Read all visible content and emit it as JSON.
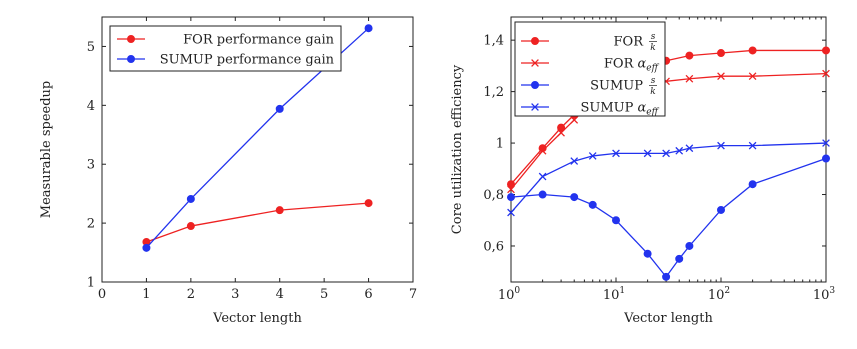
{
  "chart_data": [
    {
      "type": "line",
      "xlabel": "Vector length",
      "ylabel": "Measurable speedup",
      "xlim": [
        0,
        7
      ],
      "ylim": [
        1,
        5.5
      ],
      "xticks": [
        "0",
        "1",
        "2",
        "3",
        "4",
        "5",
        "6",
        "7"
      ],
      "yticks": [
        "1",
        "2",
        "3",
        "4",
        "5"
      ],
      "legend_placement": "top-left",
      "series": [
        {
          "name": "FOR performance gain",
          "color": "#ee2222",
          "marker": "circle",
          "x": [
            1,
            2,
            4,
            6
          ],
          "y": [
            1.68,
            1.95,
            2.22,
            2.34
          ]
        },
        {
          "name": "SUMUP performance gain",
          "color": "#2233ee",
          "marker": "circle",
          "x": [
            1,
            2,
            4,
            6
          ],
          "y": [
            1.58,
            2.41,
            3.94,
            5.31
          ]
        }
      ]
    },
    {
      "type": "line",
      "xlabel": "Vector length",
      "ylabel": "Core utilization efficiency",
      "xscale": "log",
      "xlim": [
        1,
        1000
      ],
      "ylim": [
        0.46,
        1.49
      ],
      "xticks": [
        {
          "base": "10",
          "exp": "0"
        },
        {
          "base": "10",
          "exp": "1"
        },
        {
          "base": "10",
          "exp": "2"
        },
        {
          "base": "10",
          "exp": "3"
        }
      ],
      "yticks": [
        "0,6",
        "0,8",
        "1",
        "1,2",
        "1,4"
      ],
      "legend_placement": "top-left",
      "series": [
        {
          "name": "FOR s/k",
          "legend": {
            "label": "FOR",
            "math": "frac",
            "num": "s",
            "den": "k"
          },
          "color": "#ee2222",
          "marker": "circle",
          "x": [
            1,
            2,
            3,
            4,
            5,
            6,
            8,
            10,
            20,
            30,
            50,
            100,
            200,
            1000
          ],
          "y": [
            0.84,
            0.98,
            1.06,
            1.11,
            1.15,
            1.18,
            1.22,
            1.26,
            1.3,
            1.32,
            1.34,
            1.35,
            1.36,
            1.36
          ]
        },
        {
          "name": "FOR α_eff",
          "legend": {
            "label": "FOR",
            "math": "sub",
            "sym": "α",
            "sub": "eff"
          },
          "color": "#ee2222",
          "marker": "x",
          "x": [
            1,
            2,
            3,
            4,
            5,
            6,
            8,
            10,
            20,
            30,
            50,
            100,
            200,
            1000
          ],
          "y": [
            0.82,
            0.97,
            1.04,
            1.09,
            1.13,
            1.16,
            1.19,
            1.21,
            1.23,
            1.24,
            1.25,
            1.26,
            1.26,
            1.27
          ]
        },
        {
          "name": "SUMUP s/k",
          "legend": {
            "label": "SUMUP",
            "math": "frac",
            "num": "s",
            "den": "k"
          },
          "color": "#2233ee",
          "marker": "circle",
          "x": [
            1,
            2,
            4,
            6,
            10,
            20,
            30,
            40,
            50,
            100,
            200,
            1000
          ],
          "y": [
            0.79,
            0.8,
            0.79,
            0.76,
            0.7,
            0.57,
            0.48,
            0.55,
            0.6,
            0.74,
            0.84,
            0.94
          ]
        },
        {
          "name": "SUMUP α_eff",
          "legend": {
            "label": "SUMUP",
            "math": "sub",
            "sym": "α",
            "sub": "eff"
          },
          "color": "#2233ee",
          "marker": "x",
          "x": [
            1,
            2,
            4,
            6,
            10,
            20,
            30,
            40,
            50,
            100,
            200,
            1000
          ],
          "y": [
            0.73,
            0.87,
            0.93,
            0.95,
            0.96,
            0.96,
            0.96,
            0.97,
            0.98,
            0.99,
            0.99,
            1.0
          ]
        }
      ]
    }
  ]
}
